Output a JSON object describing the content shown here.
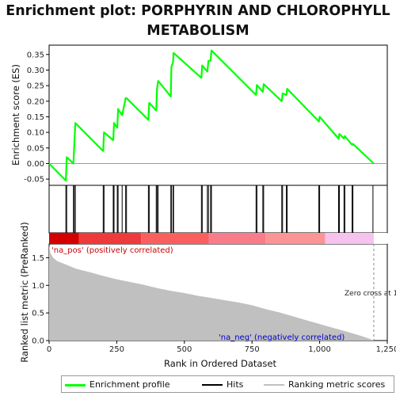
{
  "title_lines": [
    "Enrichment plot: PORPHYRIN AND CHLOROPHYLL",
    "METABOLISM"
  ],
  "colors": {
    "es_line": "#00ff00",
    "hits": "#000000",
    "ranking_fill": "#c0c0c0",
    "pos_label": "#cc0000",
    "neg_label": "#0000cc",
    "zero_line": "#999999"
  },
  "chart_data": [
    {
      "type": "line",
      "name": "enrichment-profile",
      "ylabel": "Enrichment score (ES)",
      "ylim": [
        -0.07,
        0.38
      ],
      "yticks": [
        "-0.05",
        "0.00",
        "0.05",
        "0.10",
        "0.15",
        "0.20",
        "0.25",
        "0.30",
        "0.35"
      ],
      "ytick_values": [
        -0.05,
        0.0,
        0.05,
        0.1,
        0.15,
        0.2,
        0.25,
        0.3,
        0.35
      ],
      "x": [
        0,
        62,
        65,
        90,
        93,
        97,
        200,
        203,
        237,
        240,
        252,
        255,
        270,
        283,
        286,
        367,
        370,
        396,
        399,
        403,
        450,
        452,
        458,
        460,
        563,
        566,
        585,
        589,
        597,
        600,
        765,
        768,
        790,
        793,
        860,
        863,
        877,
        880,
        997,
        1000,
        1070,
        1073,
        1090,
        1093,
        1120,
        1123,
        1200
      ],
      "y": [
        0.0,
        -0.055,
        0.02,
        0.0,
        0.06,
        0.13,
        0.04,
        0.1,
        0.075,
        0.13,
        0.115,
        0.175,
        0.155,
        0.21,
        0.21,
        0.14,
        0.195,
        0.17,
        0.24,
        0.265,
        0.215,
        0.31,
        0.325,
        0.355,
        0.275,
        0.315,
        0.295,
        0.33,
        0.33,
        0.363,
        0.22,
        0.252,
        0.23,
        0.255,
        0.2,
        0.225,
        0.22,
        0.24,
        0.135,
        0.15,
        0.08,
        0.095,
        0.08,
        0.088,
        0.06,
        0.063,
        0.0
      ]
    },
    {
      "type": "scatter",
      "name": "hits",
      "x": [
        62,
        65,
        90,
        93,
        97,
        200,
        203,
        237,
        240,
        252,
        255,
        270,
        283,
        286,
        367,
        370,
        396,
        399,
        403,
        450,
        452,
        458,
        460,
        563,
        566,
        585,
        589,
        597,
        600,
        765,
        768,
        790,
        793,
        860,
        863,
        877,
        880,
        997,
        1000,
        1070,
        1073,
        1090,
        1093,
        1120,
        1123,
        1197
      ]
    },
    {
      "type": "area",
      "name": "ranked-list-metric",
      "xlabel": "Rank in Ordered Dataset",
      "ylabel": "Ranked list metric (PreRanked)",
      "xlim": [
        0,
        1250
      ],
      "ylim": [
        0,
        1.75
      ],
      "xticks": [
        "0",
        "250",
        "500",
        "750",
        "1,000",
        "1,250"
      ],
      "xtick_values": [
        0,
        250,
        500,
        750,
        1000,
        1250
      ],
      "yticks": [
        "0.0",
        "0.5",
        "1.0",
        "1.5"
      ],
      "ytick_values": [
        0,
        0.5,
        1.0,
        1.5
      ],
      "x": [
        0,
        5,
        15,
        30,
        60,
        100,
        150,
        200,
        250,
        300,
        350,
        400,
        450,
        500,
        550,
        600,
        650,
        700,
        750,
        800,
        850,
        900,
        950,
        1000,
        1050,
        1100,
        1150,
        1180,
        1195,
        1200
      ],
      "y": [
        1.72,
        1.58,
        1.5,
        1.44,
        1.38,
        1.3,
        1.24,
        1.17,
        1.11,
        1.06,
        1.01,
        0.95,
        0.9,
        0.86,
        0.81,
        0.77,
        0.73,
        0.69,
        0.64,
        0.57,
        0.51,
        0.44,
        0.37,
        0.3,
        0.23,
        0.16,
        0.09,
        0.04,
        0.01,
        0.0
      ]
    }
  ],
  "labels": {
    "pos": "'na_pos' (positively correlated)",
    "neg": "'na_neg' (negatively correlated)",
    "zero_cross": "Zero cross at 1"
  },
  "legend": {
    "items": [
      "Enrichment profile",
      "Hits",
      "Ranking metric scores"
    ]
  }
}
